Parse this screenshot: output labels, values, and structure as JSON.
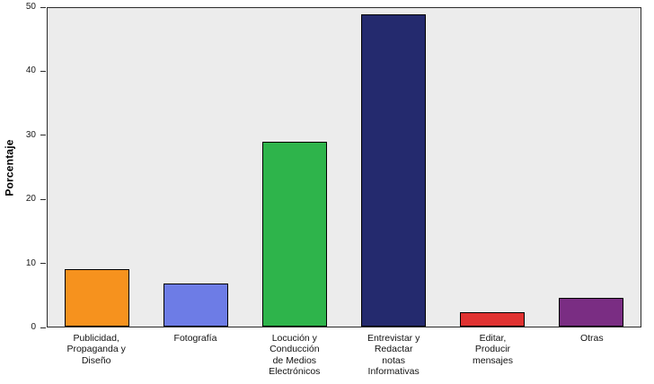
{
  "chart_data": {
    "type": "bar",
    "title": "",
    "ylabel": "Porcentaje",
    "xlabel": "",
    "ylim": [
      0,
      50
    ],
    "yticks": [
      0,
      10,
      20,
      30,
      40,
      50
    ],
    "grid": false,
    "legend": null,
    "plot_background": "#ececec",
    "categories": [
      "Publicidad,\nPropaganda y\nDiseño",
      "Fotografía",
      "Locución y\nConducción\nde Medios\nElectrónicos",
      "Entrevistar y\nRedactar\nnotas\nInformativas",
      "Editar,\nProducir\nmensajes",
      "Otras"
    ],
    "values": [
      9,
      6.7,
      29,
      49,
      2.2,
      4.5
    ],
    "bar_colors": [
      "#F6921E",
      "#6D7CE6",
      "#2EB44B",
      "#242A6E",
      "#E03231",
      "#7A2D83"
    ]
  }
}
